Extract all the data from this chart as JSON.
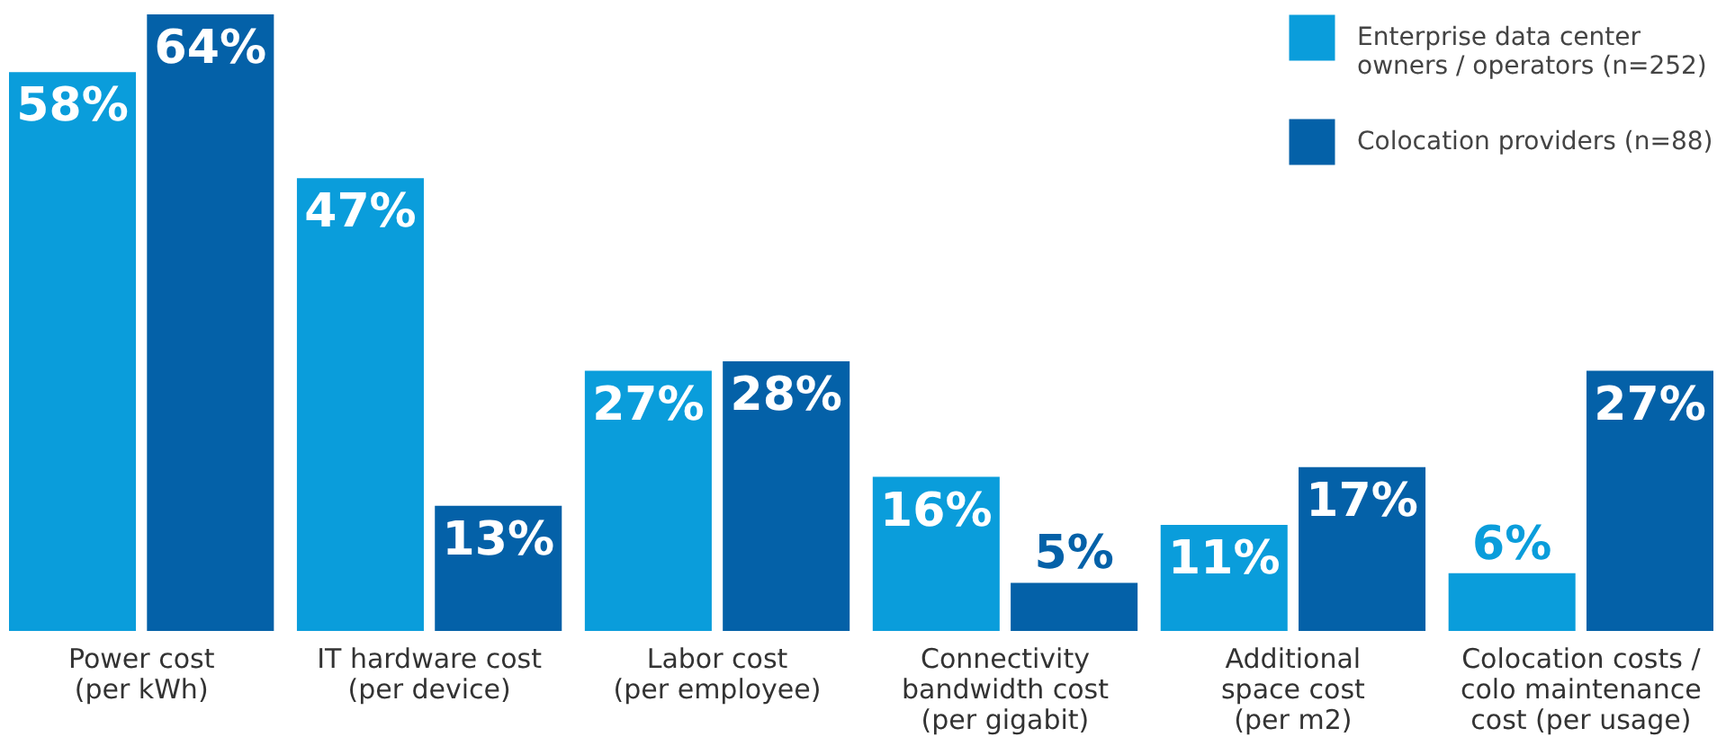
{
  "chart_data": {
    "type": "bar",
    "categories": [
      "Power cost\n(per kWh)",
      "IT hardware cost\n(per device)",
      "Labor cost\n(per employee)",
      "Connectivity\nbandwidth cost\n(per gigabit)",
      "Additional\nspace cost\n(per m2)",
      "Colocation costs /\ncolo maintenance\ncost (per usage)"
    ],
    "series": [
      {
        "name": "Enterprise data center\nowners / operators (n=252)",
        "color": "#0a9ddb",
        "values": [
          58,
          47,
          27,
          16,
          11,
          6
        ],
        "value_labels": [
          "58%",
          "47%",
          "27%",
          "16%",
          "11%",
          "6%"
        ]
      },
      {
        "name": "Colocation providers (n=88)",
        "color": "#0461a8",
        "values": [
          64,
          13,
          28,
          5,
          17,
          27
        ],
        "value_labels": [
          "64%",
          "13%",
          "28%",
          "5%",
          "17%",
          "27%"
        ]
      }
    ],
    "legend": "top right",
    "grid": false
  }
}
